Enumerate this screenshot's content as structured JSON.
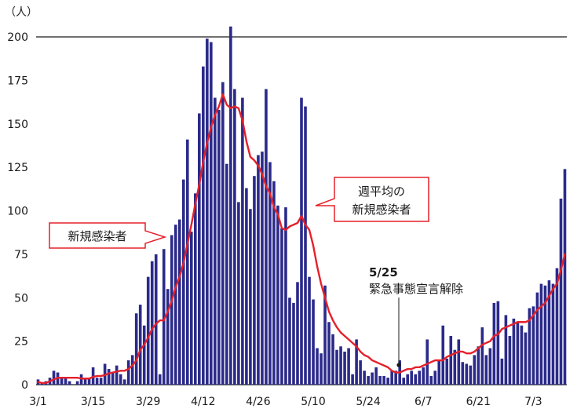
{
  "chart_data": {
    "type": "bar",
    "unit_label": "（人）",
    "ylim": [
      0,
      200
    ],
    "y_ticks": [
      0,
      25,
      50,
      75,
      100,
      125,
      150,
      175,
      200
    ],
    "x_tick_labels": [
      "3/1",
      "3/15",
      "3/29",
      "4/12",
      "4/26",
      "5/10",
      "5/24",
      "6/7",
      "6/21",
      "7/3"
    ],
    "series": [
      {
        "name": "新規感染者",
        "type": "bar",
        "color": "#2b2a8a",
        "values": [
          3,
          1,
          2,
          4,
          8,
          7,
          4,
          4,
          2,
          0,
          2,
          6,
          3,
          4,
          10,
          4,
          4,
          12,
          9,
          7,
          11,
          6,
          3,
          14,
          17,
          41,
          46,
          34,
          62,
          71,
          75,
          6,
          78,
          55,
          86,
          92,
          95,
          118,
          141,
          88,
          110,
          156,
          183,
          199,
          197,
          165,
          158,
          174,
          127,
          206,
          170,
          105,
          165,
          113,
          101,
          120,
          132,
          134,
          170,
          128,
          117,
          103,
          90,
          102,
          50,
          47,
          59,
          165,
          160,
          62,
          49,
          21,
          18,
          57,
          36,
          29,
          20,
          22,
          19,
          21,
          6,
          26,
          14,
          8,
          5,
          7,
          10,
          5,
          5,
          4,
          8,
          8,
          14,
          4,
          6,
          8,
          6,
          8,
          10,
          26,
          5,
          8,
          14,
          34,
          15,
          28,
          20,
          26,
          13,
          12,
          11,
          17,
          22,
          33,
          17,
          21,
          47,
          48,
          15,
          40,
          28,
          38,
          36,
          34,
          30,
          44,
          45,
          53,
          58,
          57,
          60,
          58,
          67,
          107,
          124
        ]
      },
      {
        "name": "週平均の新規感染者",
        "type": "line",
        "color": "#e6202a",
        "values": [
          1.5,
          1,
          1,
          2,
          3,
          4,
          4,
          4,
          4,
          4,
          4,
          3.5,
          3.5,
          3.5,
          4.5,
          5,
          5,
          5.5,
          6.5,
          7,
          7.5,
          8,
          8,
          9,
          11,
          14,
          20,
          23,
          27,
          32,
          35,
          37,
          37,
          42,
          48,
          56,
          62,
          70,
          81,
          92,
          104,
          115,
          128,
          139,
          148,
          155,
          160,
          167,
          161,
          159,
          160,
          159,
          152,
          140,
          131,
          129,
          126,
          121,
          114,
          110,
          102,
          98,
          90,
          89,
          91,
          92,
          93,
          97,
          92,
          89,
          80,
          68,
          58,
          50,
          42,
          37,
          33,
          30,
          28,
          26,
          24,
          22,
          19,
          17,
          16,
          14,
          13,
          12,
          11,
          10,
          8,
          7,
          7,
          8,
          9,
          9,
          10,
          10,
          11,
          12,
          13,
          14,
          14,
          14,
          16,
          17,
          18,
          19,
          19,
          18,
          18,
          19,
          21,
          23,
          24,
          25,
          28,
          29,
          32,
          33,
          34,
          35,
          36,
          36,
          36,
          37,
          40,
          43,
          45,
          47,
          51,
          55,
          58,
          66,
          75
        ]
      }
    ],
    "callouts": {
      "daily_label": "新規感染者",
      "weekly_label_line1": "週平均の",
      "weekly_label_line2": "新規感染者"
    },
    "annotations": {
      "date": "5/25",
      "text": "緊急事態宣言解除"
    },
    "colors": {
      "bar": "#2b2a8a",
      "line": "#e6202a",
      "callout_border": "#e6202a"
    }
  }
}
